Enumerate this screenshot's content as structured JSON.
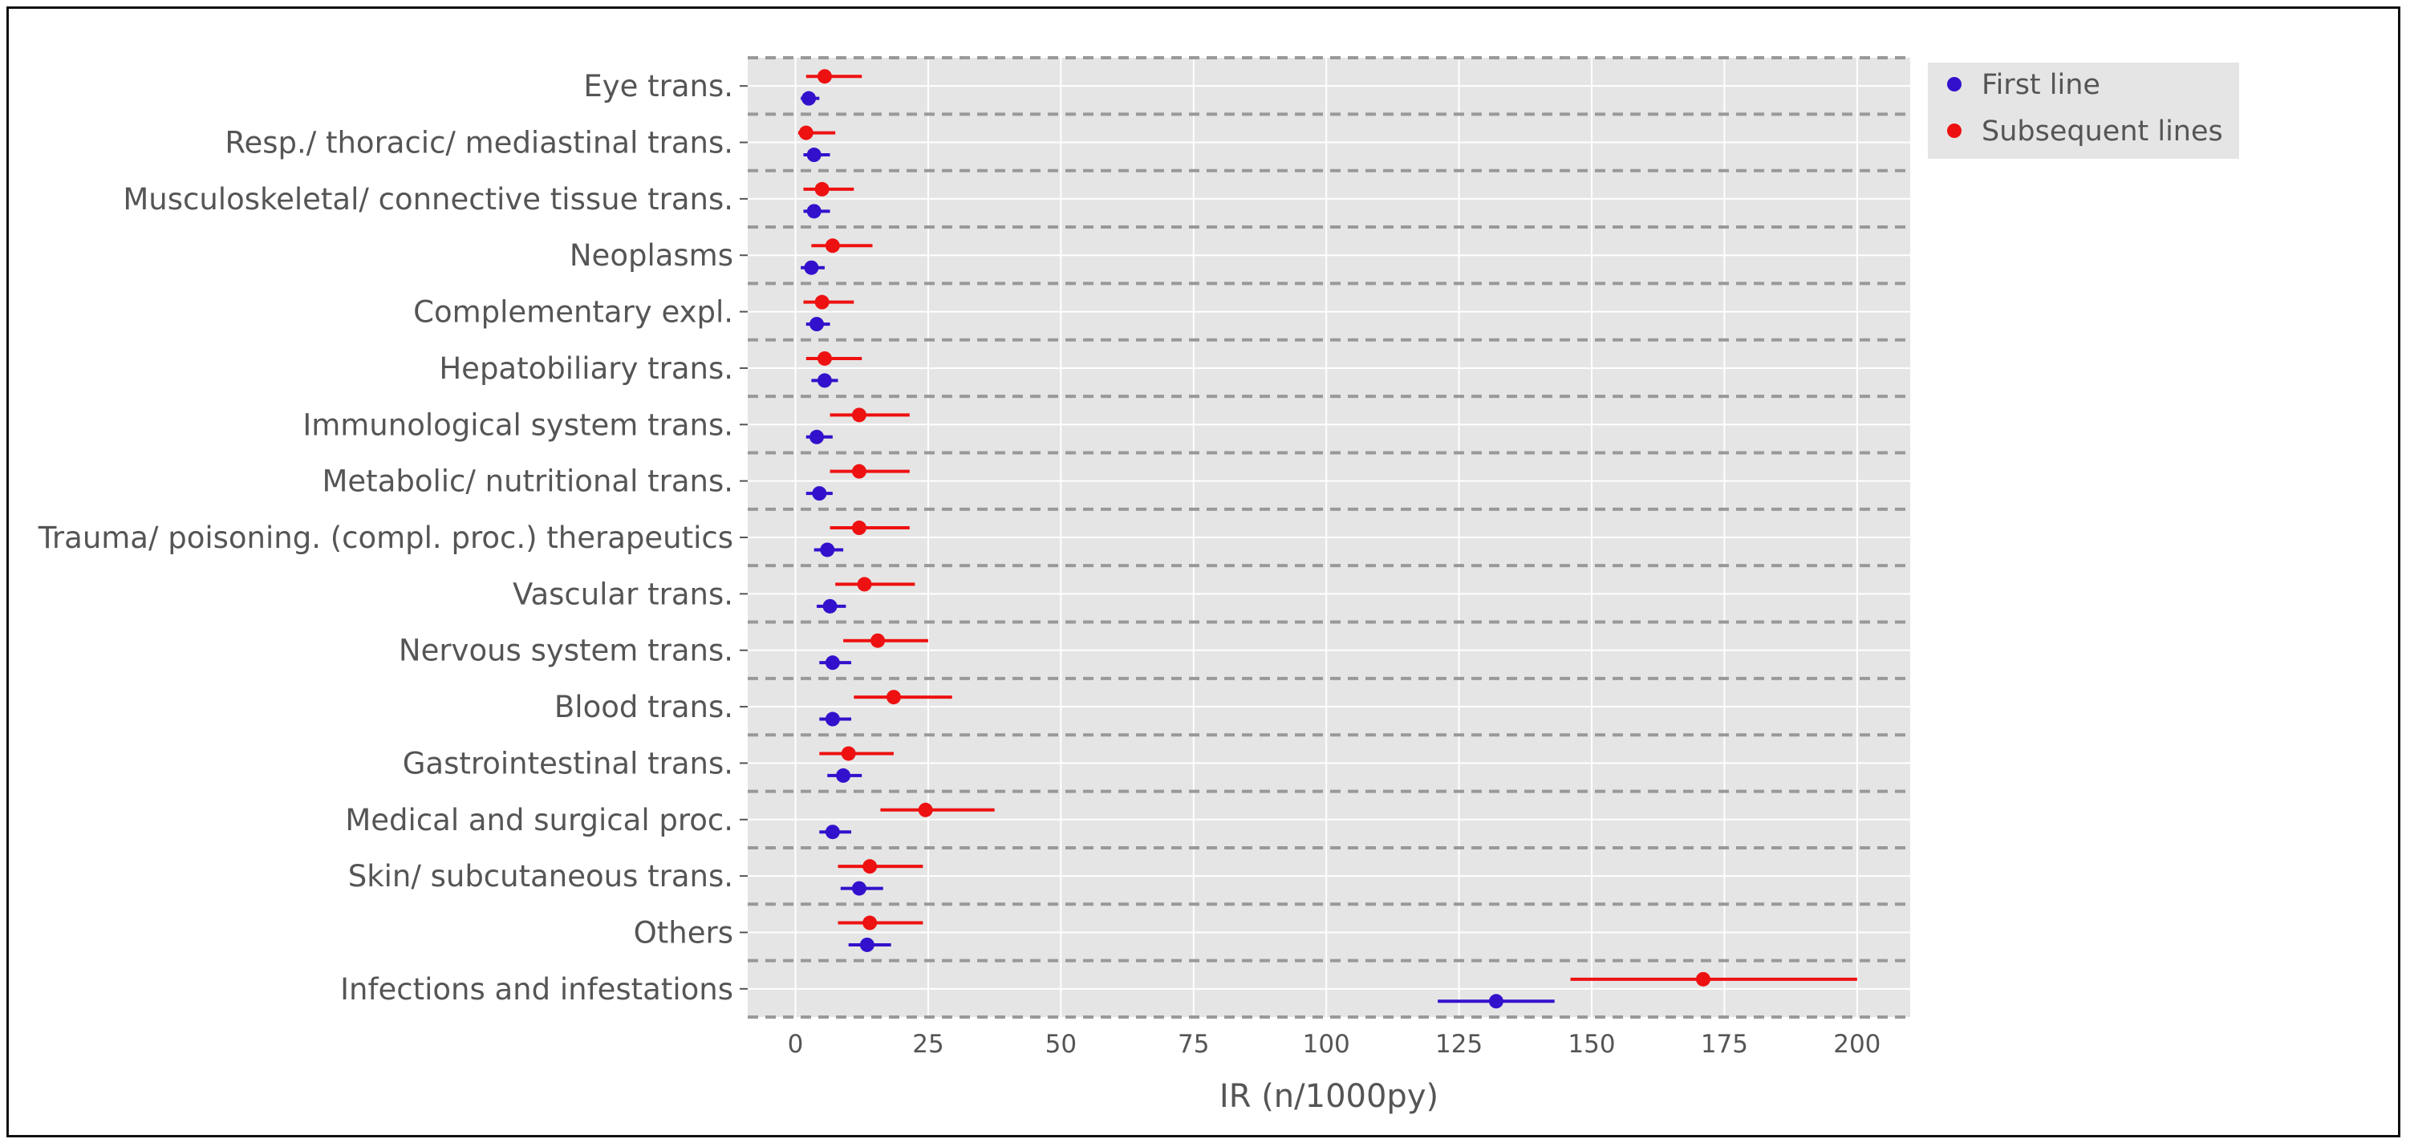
{
  "chart_data": {
    "type": "scatter",
    "subtype": "forest-plot",
    "title": "",
    "xlabel": "IR (n/1000py)",
    "ylabel": "",
    "xlim": [
      -9,
      210
    ],
    "xticks": [
      0,
      25,
      50,
      75,
      100,
      125,
      150,
      175,
      200
    ],
    "grid": true,
    "legend_position": "top-right",
    "colors": {
      "first_line": "#3311cc",
      "subsequent_lines": "#ee1111",
      "plot_bg": "#e5e5e5",
      "gridline": "#ffffff",
      "separator": "#999999",
      "text": "#555555"
    },
    "categories": [
      "Eye trans.",
      "Resp./ thoracic/ mediastinal trans.",
      "Musculoskeletal/ connective tissue trans.",
      "Neoplasms",
      "Complementary expl.",
      "Hepatobiliary trans.",
      "Immunological system trans.",
      "Metabolic/ nutritional trans.",
      "Trauma/ poisoning. (compl. proc.) therapeutics",
      "Vascular trans.",
      "Nervous system trans.",
      "Blood trans.",
      "Gastrointestinal trans.",
      "Medical and surgical proc.",
      "Skin/ subcutaneous trans.",
      "Others",
      "Infections and infestations"
    ],
    "series": [
      {
        "name": "First line",
        "points": [
          {
            "value": 2.5,
            "lo": 1.0,
            "hi": 4.5
          },
          {
            "value": 3.5,
            "lo": 1.5,
            "hi": 6.5
          },
          {
            "value": 3.5,
            "lo": 1.5,
            "hi": 6.5
          },
          {
            "value": 3.0,
            "lo": 1.0,
            "hi": 5.5
          },
          {
            "value": 4.0,
            "lo": 2.0,
            "hi": 6.5
          },
          {
            "value": 5.5,
            "lo": 3.0,
            "hi": 8.0
          },
          {
            "value": 4.0,
            "lo": 2.0,
            "hi": 7.0
          },
          {
            "value": 4.5,
            "lo": 2.0,
            "hi": 7.0
          },
          {
            "value": 6.0,
            "lo": 3.5,
            "hi": 9.0
          },
          {
            "value": 6.5,
            "lo": 4.0,
            "hi": 9.5
          },
          {
            "value": 7.0,
            "lo": 4.5,
            "hi": 10.5
          },
          {
            "value": 7.0,
            "lo": 4.5,
            "hi": 10.5
          },
          {
            "value": 9.0,
            "lo": 6.0,
            "hi": 12.5
          },
          {
            "value": 7.0,
            "lo": 4.5,
            "hi": 10.5
          },
          {
            "value": 12.0,
            "lo": 8.5,
            "hi": 16.5
          },
          {
            "value": 13.5,
            "lo": 10.0,
            "hi": 18.0
          },
          {
            "value": 132.0,
            "lo": 121.0,
            "hi": 143.0
          }
        ]
      },
      {
        "name": "Subsequent lines",
        "points": [
          {
            "value": 5.5,
            "lo": 2.0,
            "hi": 12.5
          },
          {
            "value": 2.0,
            "lo": 0.5,
            "hi": 7.5
          },
          {
            "value": 5.0,
            "lo": 1.5,
            "hi": 11.0
          },
          {
            "value": 7.0,
            "lo": 3.0,
            "hi": 14.5
          },
          {
            "value": 5.0,
            "lo": 1.5,
            "hi": 11.0
          },
          {
            "value": 5.5,
            "lo": 2.0,
            "hi": 12.5
          },
          {
            "value": 12.0,
            "lo": 6.5,
            "hi": 21.5
          },
          {
            "value": 12.0,
            "lo": 6.5,
            "hi": 21.5
          },
          {
            "value": 12.0,
            "lo": 6.5,
            "hi": 21.5
          },
          {
            "value": 13.0,
            "lo": 7.5,
            "hi": 22.5
          },
          {
            "value": 15.5,
            "lo": 9.0,
            "hi": 25.0
          },
          {
            "value": 18.5,
            "lo": 11.0,
            "hi": 29.5
          },
          {
            "value": 10.0,
            "lo": 4.5,
            "hi": 18.5
          },
          {
            "value": 24.5,
            "lo": 16.0,
            "hi": 37.5
          },
          {
            "value": 14.0,
            "lo": 8.0,
            "hi": 24.0
          },
          {
            "value": 14.0,
            "lo": 8.0,
            "hi": 24.0
          },
          {
            "value": 171.0,
            "lo": 146.0,
            "hi": 200.0
          }
        ]
      }
    ]
  }
}
